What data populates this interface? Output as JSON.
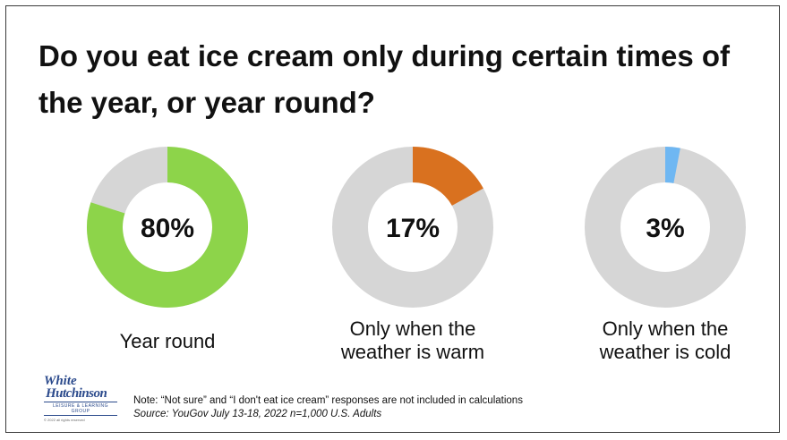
{
  "chart_data": {
    "type": "pie",
    "variant": "donut",
    "title": "Do you eat ice cream only during certain times of the year, or year round?",
    "remainder_color": "#d6d6d6",
    "slices": [
      {
        "label": "Year round",
        "value": 80,
        "display": "80%",
        "color": "#8dd44a"
      },
      {
        "label": "Only when the weather is warm",
        "label_display": "Only when the\nweather is warm",
        "value": 17,
        "display": "17%",
        "color": "#d9711f"
      },
      {
        "label": "Only when the weather is cold",
        "label_display": "Only when the\nweather is cold",
        "value": 3,
        "display": "3%",
        "color": "#6fb7f2"
      }
    ],
    "note": "Note: “Not sure” and “I don't eat ice cream” responses are not included in calculations",
    "source": "Source: YouGov July 13-18, 2022 n=1,000 U.S. Adults"
  },
  "logo": {
    "line1": "White",
    "line2": "Hutchinson",
    "line3": "LEISURE & LEARNING GROUP",
    "line4": "© 2022 all rights reserved"
  }
}
